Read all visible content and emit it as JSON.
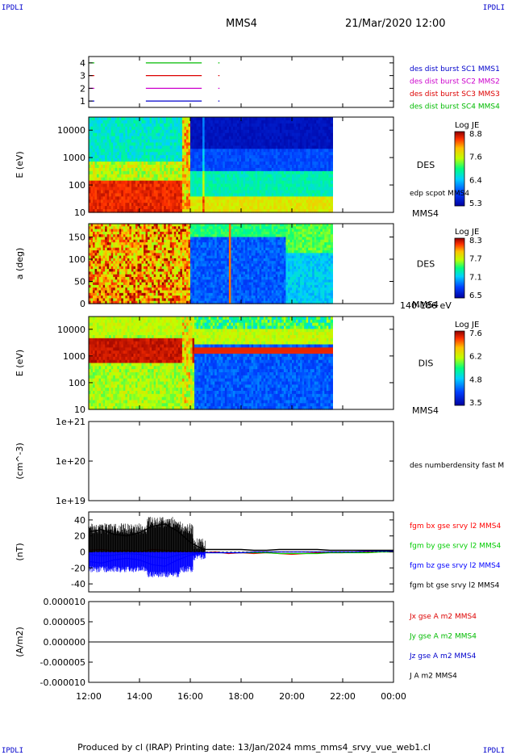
{
  "corners": {
    "tl": "IPDLI",
    "tr": "IPDLI",
    "bl": "IPDLI",
    "br": "IPDLI"
  },
  "header": {
    "spacecraft": "MMS4",
    "datetime": "21/Mar/2020 12:00"
  },
  "footer": {
    "text": "Produced by cl (IRAP)   Printing date: 13/Jan/2024   mms_mms4_srvy_vue_web1.cl"
  },
  "time_axis": {
    "ticks": [
      "12:00",
      "14:00",
      "16:00",
      "18:00",
      "20:00",
      "22:00",
      "00:00"
    ]
  },
  "colors": {
    "black": "#000000",
    "red": "#ff0000",
    "green": "#00cc00",
    "blue": "#0000ff",
    "magenta": "#cc00cc",
    "lime": "#00bb00"
  },
  "chart_data": [
    {
      "type": "line",
      "panel": "burst-availability",
      "yticks": [
        "1",
        "2",
        "3",
        "4"
      ],
      "ylim": [
        0.5,
        4.5
      ],
      "x_hours": [
        12,
        24
      ],
      "series": [
        {
          "name": "des dist burst SC1 MMS1",
          "level": 1,
          "color": "#0000cc",
          "segments": [
            [
              14.25,
              16.45
            ],
            [
              17.1,
              17.15
            ]
          ]
        },
        {
          "name": "des dist burst SC2 MMS2",
          "level": 2,
          "color": "#cc00cc",
          "segments": [
            [
              14.25,
              16.45
            ],
            [
              17.1,
              17.15
            ]
          ]
        },
        {
          "name": "des dist burst SC3 MMS3",
          "level": 3,
          "color": "#dd0000",
          "segments": [
            [
              14.25,
              16.45
            ],
            [
              17.1,
              17.15
            ]
          ]
        },
        {
          "name": "des dist burst SC4 MMS4",
          "level": 4,
          "color": "#00bb00",
          "segments": [
            [
              14.25,
              16.45
            ],
            [
              17.1,
              17.15
            ]
          ]
        }
      ]
    },
    {
      "type": "heatmap",
      "panel": "des-energy",
      "ylabel": "E (eV)",
      "yscale": "log",
      "ylim": [
        10,
        30000
      ],
      "yticks": [
        "10",
        "100",
        "1000",
        "10000"
      ],
      "data_end_hour": 21.6,
      "label": "DES",
      "overlay_label": "edp scpot MMS4",
      "spacecraft_label": "MMS4",
      "colorbar": {
        "title": "Log JE",
        "ticks": [
          "8.8",
          "7.6",
          "6.4",
          "5.3"
        ],
        "range": [
          5.3,
          8.8
        ]
      }
    },
    {
      "type": "heatmap",
      "panel": "des-pitch-angle",
      "ylabel": "a (deg)",
      "ylim": [
        0,
        180
      ],
      "yticks": [
        "0",
        "50",
        "100",
        "150"
      ],
      "data_end_hour": 21.6,
      "label": "DES",
      "spacecraft_label": "MMS4",
      "energy_label": "140-186 eV",
      "colorbar": {
        "title": "Log JE",
        "ticks": [
          "8.3",
          "7.7",
          "7.1",
          "6.5"
        ],
        "range": [
          6.5,
          8.3
        ]
      }
    },
    {
      "type": "heatmap",
      "panel": "dis-energy",
      "ylabel": "E (eV)",
      "yscale": "log",
      "ylim": [
        10,
        30000
      ],
      "yticks": [
        "10",
        "100",
        "1000",
        "10000"
      ],
      "data_end_hour": 21.6,
      "label": "DIS",
      "spacecraft_label": "MMS4",
      "colorbar": {
        "title": "Log JE",
        "ticks": [
          "7.6",
          "6.2",
          "4.8",
          "3.5"
        ],
        "range": [
          3.5,
          7.6
        ]
      }
    },
    {
      "type": "line",
      "panel": "density",
      "ylabel": "(cm^-3)",
      "yscale": "log",
      "ylim": [
        1e+19,
        1e+21
      ],
      "yticks": [
        "1e+19",
        "1e+20",
        "1e+21"
      ],
      "series": [
        {
          "name": "des numberdensity fast M",
          "values": []
        }
      ]
    },
    {
      "type": "line",
      "panel": "magnetic-field",
      "ylabel": "(nT)",
      "ylim": [
        -50,
        50
      ],
      "yticks": [
        "-40",
        "-20",
        "0",
        "20",
        "40"
      ],
      "x_hours": [
        12,
        12.5,
        13,
        13.5,
        14,
        14.5,
        15,
        15.5,
        16,
        16.5,
        17,
        17.5,
        18,
        18.5,
        19,
        19.5,
        20,
        20.5,
        21,
        21.5,
        22,
        22.5,
        23,
        23.5,
        24
      ],
      "series": [
        {
          "name": "fgm bx gse srvy l2 MMS4",
          "color": "#ff0000",
          "values": [
            2,
            3,
            1,
            2,
            0,
            3,
            2,
            1,
            0,
            -1,
            0,
            -2,
            -1,
            -2,
            -1,
            -2,
            -3,
            -2,
            -1,
            -1,
            -1,
            0,
            0,
            1,
            1
          ]
        },
        {
          "name": "fgm by gse srvy l2 MMS4",
          "color": "#00cc00",
          "values": [
            -3,
            -5,
            -4,
            -2,
            -3,
            -6,
            -8,
            -4,
            -2,
            -1,
            -1,
            -1,
            -1,
            -1,
            -1,
            -2,
            -2,
            -2,
            -2,
            -1,
            -1,
            -1,
            -1,
            0,
            0
          ]
        },
        {
          "name": "fgm bz gse srvy l2 MMS4",
          "color": "#0000ff",
          "values": [
            -12,
            -14,
            -10,
            -8,
            -10,
            -16,
            -18,
            -10,
            -4,
            -1,
            -1,
            -1,
            -1,
            0,
            0,
            0,
            0,
            0,
            0,
            0,
            0,
            0,
            1,
            1,
            1
          ]
        },
        {
          "name": "fgm bt gse srvy l2 MMS4",
          "color": "#000000",
          "values": [
            25,
            28,
            22,
            20,
            24,
            32,
            35,
            26,
            12,
            3,
            3,
            3,
            3,
            2,
            2,
            3,
            3,
            3,
            3,
            2,
            2,
            2,
            2,
            2,
            2
          ]
        }
      ]
    },
    {
      "type": "line",
      "panel": "current-density",
      "ylabel": "(A/m2)",
      "ylim": [
        -1e-05,
        1e-05
      ],
      "yticks": [
        "-0.000010",
        "-0.000005",
        "0.000000",
        "0.000005",
        "0.000010"
      ],
      "series": [
        {
          "name": "Jx gse A m2 MMS4",
          "color": "#dd0000",
          "values": [
            0,
            0,
            0,
            0,
            0,
            0,
            0,
            0,
            0,
            0,
            0,
            0,
            0,
            0,
            0,
            0,
            0,
            0,
            0,
            0,
            0,
            0,
            0,
            0,
            0
          ]
        },
        {
          "name": "Jy gse A m2 MMS4",
          "color": "#00bb00",
          "values": [
            0,
            0,
            0,
            0,
            0,
            0,
            0,
            0,
            0,
            0,
            0,
            0,
            0,
            0,
            0,
            0,
            0,
            0,
            0,
            0,
            0,
            0,
            0,
            0,
            0
          ]
        },
        {
          "name": "Jz gse A m2 MMS4",
          "color": "#0000cc",
          "values": [
            0,
            0,
            0,
            0,
            0,
            0,
            0,
            0,
            0,
            0,
            0,
            0,
            0,
            0,
            0,
            0,
            0,
            0,
            0,
            0,
            0,
            0,
            0,
            0,
            0
          ]
        },
        {
          "name": "J A m2 MMS4",
          "color": "#000000",
          "values": [
            0,
            0,
            0,
            0,
            0,
            0,
            0,
            0,
            0,
            0,
            0,
            0,
            0,
            0,
            0,
            0,
            0,
            0,
            0,
            0,
            0,
            0,
            0,
            0,
            0
          ]
        }
      ]
    }
  ]
}
